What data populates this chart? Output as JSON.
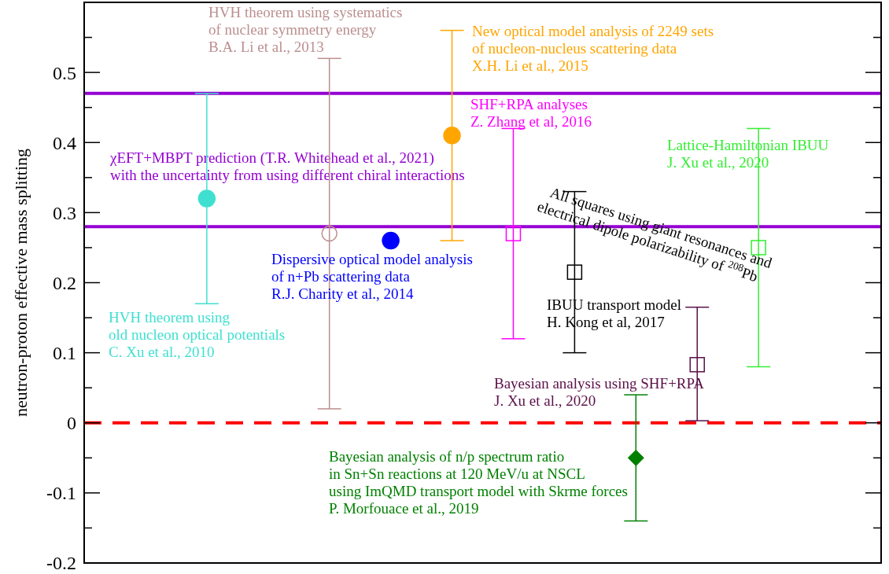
{
  "chart_data": {
    "type": "scatter",
    "ylabel": "neutron-proton effective mass splitting",
    "categories": [
      null,
      null,
      null,
      null,
      null,
      null,
      null,
      null,
      null,
      null,
      null,
      null,
      null,
      null
    ],
    "ylim": [
      -0.2,
      0.6
    ],
    "yticks": [
      -0.2,
      {
        "value": -0.15,
        "label": null
      },
      -0.1,
      {
        "value": -0.05,
        "label": null
      },
      0,
      {
        "value": 0.05,
        "label": null
      },
      0.1,
      {
        "value": 0.15,
        "label": null
      },
      0.2,
      {
        "value": 0.25,
        "label": null
      },
      0.3,
      {
        "value": 0.35,
        "label": null
      },
      0.4,
      {
        "value": 0.45,
        "label": null
      },
      0.5,
      {
        "value": 0.55,
        "label": null
      }
    ],
    "grid": false,
    "legend": false,
    "series": [
      {
        "name": "HVH theorem using\nold nucleon optical potentials\nC. Xu et al., 2010",
        "color": "#40e0d0",
        "marker": "circle",
        "values": [
          null,
          null,
          0.32,
          null,
          null,
          null,
          null,
          null,
          null,
          null,
          null,
          null,
          null,
          null
        ],
        "errors": [
          null,
          null,
          [
            0.17,
            0.47
          ],
          null,
          null,
          null,
          null,
          null,
          null,
          null,
          null,
          null,
          null,
          null
        ]
      },
      {
        "name": "HVH theorem using systematics\nof nuclear symmetry energy\nB.A. Li et al., 2013",
        "color": "#bc8f8f",
        "marker": "circle",
        "values": [
          null,
          null,
          null,
          null,
          0.27,
          null,
          null,
          null,
          null,
          null,
          null,
          null,
          null,
          null
        ],
        "errors": [
          null,
          null,
          null,
          null,
          [
            0.02,
            0.52
          ],
          null,
          null,
          null,
          null,
          null,
          null,
          null,
          null,
          null
        ]
      },
      {
        "name": "Dispersive optical model analysis\nof n+Pb scattering data\nR.J. Charity et al., 2014",
        "color": "#0000ff",
        "marker": "circle",
        "values": [
          null,
          null,
          null,
          null,
          null,
          0.26,
          null,
          null,
          null,
          null,
          null,
          null,
          null,
          null
        ]
      },
      {
        "name": "New optical model analysis of 2249 sets\nof nucleon-nucleus scattering data\nX.H. Li et al., 2015",
        "color": "#ffa500",
        "marker": "circle",
        "values": [
          null,
          null,
          null,
          null,
          null,
          null,
          0.41,
          null,
          null,
          null,
          null,
          null,
          null,
          null
        ],
        "errors": [
          null,
          null,
          null,
          null,
          null,
          null,
          [
            0.26,
            0.56
          ],
          null,
          null,
          null,
          null,
          null,
          null,
          null
        ]
      },
      {
        "name": "SHF+RPA analyses\nZ. Zhang et al, 2016",
        "color": "#ff00ff",
        "marker": "square",
        "values": [
          null,
          null,
          null,
          null,
          null,
          null,
          null,
          0.27,
          null,
          null,
          null,
          null,
          null,
          null
        ],
        "errors": [
          null,
          null,
          null,
          null,
          null,
          null,
          null,
          [
            0.12,
            0.42
          ],
          null,
          null,
          null,
          null,
          null,
          null
        ]
      },
      {
        "name": "IBUU transport model\nH. Kong et al, 2017",
        "color": "#000000",
        "marker": "square",
        "values": [
          null,
          null,
          null,
          null,
          null,
          null,
          null,
          null,
          0.215,
          null,
          null,
          null,
          null,
          null
        ],
        "errors": [
          null,
          null,
          null,
          null,
          null,
          null,
          null,
          null,
          [
            0.1,
            0.33
          ],
          null,
          null,
          null,
          null,
          null
        ]
      },
      {
        "name": "Bayesian analysis of n/p spectrum ratio\nin Sn+Sn reactions at 120 MeV/u at NSCL\nusing ImQMD transport model with Skrme forces\nP. Morfouace et al., 2019",
        "color": "#008000",
        "marker": "diamond",
        "values": [
          null,
          null,
          null,
          null,
          null,
          null,
          null,
          null,
          null,
          -0.05,
          null,
          null,
          null,
          null
        ],
        "errors": [
          null,
          null,
          null,
          null,
          null,
          null,
          null,
          null,
          null,
          [
            -0.14,
            0.04
          ],
          null,
          null,
          null,
          null
        ]
      },
      {
        "name": "Bayesian analysis using SHF+RPA\nJ. Xu et al., 2020",
        "color": "#5a1048",
        "marker": "square",
        "values": [
          null,
          null,
          null,
          null,
          null,
          null,
          null,
          null,
          null,
          null,
          0.083,
          null,
          null,
          null
        ],
        "errors": [
          null,
          null,
          null,
          null,
          null,
          null,
          null,
          null,
          null,
          null,
          [
            0.003,
            0.165
          ],
          null,
          null,
          null
        ]
      },
      {
        "name": "Lattice-Hamiltonian IBUU\nJ. Xu et al., 2020",
        "color": "#33ee33",
        "marker": "square",
        "values": [
          null,
          null,
          null,
          null,
          null,
          null,
          null,
          null,
          null,
          null,
          null,
          0.25,
          null,
          null
        ],
        "errors": [
          null,
          null,
          null,
          null,
          null,
          null,
          null,
          null,
          null,
          null,
          null,
          [
            0.08,
            0.42
          ],
          null,
          null
        ]
      }
    ],
    "ref_lines": [
      {
        "axis": "y",
        "value": 0.47,
        "color": "#9400d3",
        "line_style": "solid"
      },
      {
        "axis": "y",
        "value": 0.28,
        "color": "#9400d3",
        "line_style": "solid",
        "label": "χEFT+MBPT prediction (T.R. Whitehead et al., 2021)\nwith the uncertainty from using different chiral interactions"
      },
      {
        "axis": "y",
        "value": 0,
        "color": "#ff0000",
        "line_style": "dashed"
      }
    ],
    "annotations": [
      "All squares using giant resonances and\nelectrical dipole polarizability of $^{208}$Pb"
    ]
  }
}
